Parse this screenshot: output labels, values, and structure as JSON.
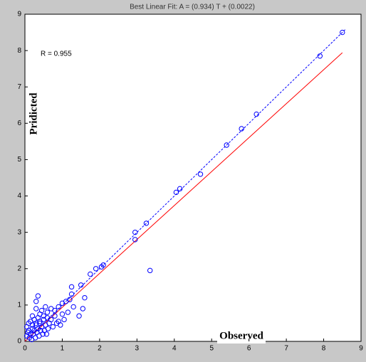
{
  "chart_data": {
    "type": "scatter",
    "title": "Best Linear Fit:  A = (0.934) T + (0.0022)",
    "annotation": "R = 0.955",
    "ylabel": "Pridicted",
    "xlabel": "Observed",
    "xlim": [
      0,
      9
    ],
    "ylim": [
      0,
      9
    ],
    "xticks": [
      0,
      1,
      2,
      3,
      4,
      5,
      6,
      7,
      8,
      9
    ],
    "yticks": [
      0,
      1,
      2,
      3,
      4,
      5,
      6,
      7,
      8,
      9
    ],
    "points": {
      "color": "#0000ff",
      "x": [
        8.5,
        7.9,
        6.2,
        5.8,
        5.4,
        4.7,
        4.15,
        4.05,
        3.25,
        2.95,
        2.95,
        3.35,
        2.1,
        2.05,
        1.9,
        1.75,
        1.5,
        1.25,
        1.25,
        1.6,
        1.55,
        1.3,
        1.1,
        0.35,
        0.3,
        1.2,
        1.0,
        0.9,
        1.45,
        1.15,
        0.8,
        0.7,
        0.6,
        0.55,
        0.5,
        0.45,
        0.4,
        0.35,
        0.3,
        0.25,
        0.2,
        0.15,
        0.1,
        0.05,
        0.1,
        0.2,
        0.3,
        0.4,
        0.5,
        0.6,
        0.7,
        0.8,
        0.9,
        1.0,
        0.15,
        0.25,
        0.35,
        0.45,
        0.55,
        0.65,
        0.75,
        0.05,
        0.12,
        0.22,
        0.32,
        0.42,
        0.52,
        0.62,
        0.85,
        0.95,
        1.05,
        0.18,
        0.28,
        0.38,
        0.48,
        0.58,
        0.08,
        0.2,
        0.3,
        0.4
      ],
      "values": [
        8.5,
        7.85,
        6.25,
        5.85,
        5.4,
        4.6,
        4.2,
        4.1,
        3.25,
        3.0,
        2.8,
        1.95,
        2.1,
        2.05,
        2.0,
        1.85,
        1.55,
        1.5,
        1.3,
        1.2,
        0.9,
        0.95,
        1.1,
        1.25,
        1.1,
        1.15,
        1.05,
        0.95,
        0.7,
        0.8,
        0.85,
        0.9,
        0.8,
        0.95,
        0.7,
        0.85,
        0.75,
        0.65,
        0.9,
        0.6,
        0.7,
        0.55,
        0.5,
        0.4,
        0.3,
        0.45,
        0.5,
        0.55,
        0.6,
        0.65,
        0.6,
        0.7,
        0.55,
        0.75,
        0.2,
        0.3,
        0.35,
        0.4,
        0.45,
        0.5,
        0.4,
        0.15,
        0.1,
        0.2,
        0.25,
        0.3,
        0.3,
        0.35,
        0.5,
        0.45,
        0.6,
        0.05,
        0.1,
        0.15,
        0.2,
        0.2,
        0.25,
        0.35,
        0.45,
        0.5
      ]
    },
    "identity_line": {
      "color": "#0000ff",
      "x": [
        0,
        8.6
      ],
      "values": [
        0,
        8.6
      ]
    },
    "fit_line": {
      "color": "#ff0000",
      "x": [
        0,
        8.5
      ],
      "values": [
        0.0022,
        7.94
      ]
    }
  }
}
